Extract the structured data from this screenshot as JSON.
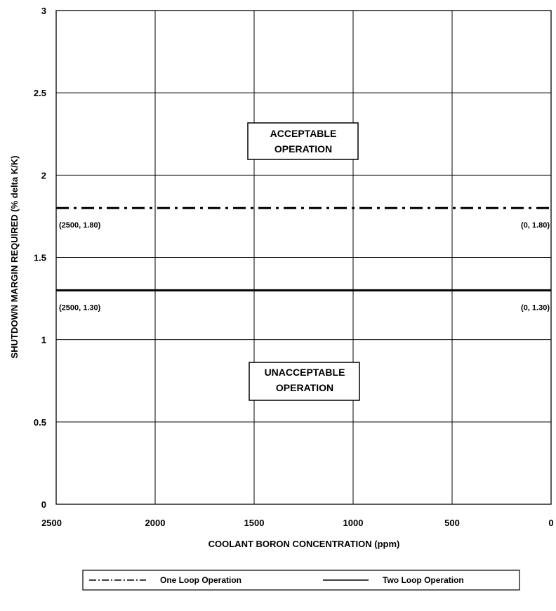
{
  "chart_data": {
    "type": "line",
    "xlabel": "COOLANT BORON CONCENTRATION (ppm)",
    "ylabel": "SHUTDOWN MARGIN REQUIRED (% delta K/K)",
    "xlim": [
      2500,
      0
    ],
    "ylim": [
      0,
      3
    ],
    "x_reversed": true,
    "x_ticks": [
      2500,
      2000,
      1500,
      1000,
      500,
      0
    ],
    "y_ticks": [
      0,
      0.5,
      1,
      1.5,
      2,
      2.5,
      3
    ],
    "x_tick_labels": [
      "2500",
      "2000",
      "1500",
      "1000",
      "500",
      "0"
    ],
    "y_tick_labels": [
      "0",
      "0.5",
      "1",
      "1.5",
      "2",
      "2.5",
      "3"
    ],
    "grid": true,
    "legend_position": "bottom",
    "series": [
      {
        "name": "One Loop Operation",
        "style": "dash-dot",
        "color": "#000000",
        "points": [
          [
            2500,
            1.8
          ],
          [
            0,
            1.8
          ]
        ],
        "labels": [
          "(2500, 1.80)",
          "(0, 1.80)"
        ]
      },
      {
        "name": "Two Loop Operation",
        "style": "solid",
        "color": "#000000",
        "points": [
          [
            2500,
            1.3
          ],
          [
            0,
            1.3
          ]
        ],
        "labels": [
          "(2500, 1.30)",
          "(0, 1.30)"
        ]
      }
    ],
    "annotations": [
      {
        "lines": [
          "ACCEPTABLE",
          "OPERATION"
        ]
      },
      {
        "lines": [
          "UNACCEPTABLE",
          "OPERATION"
        ]
      }
    ]
  }
}
